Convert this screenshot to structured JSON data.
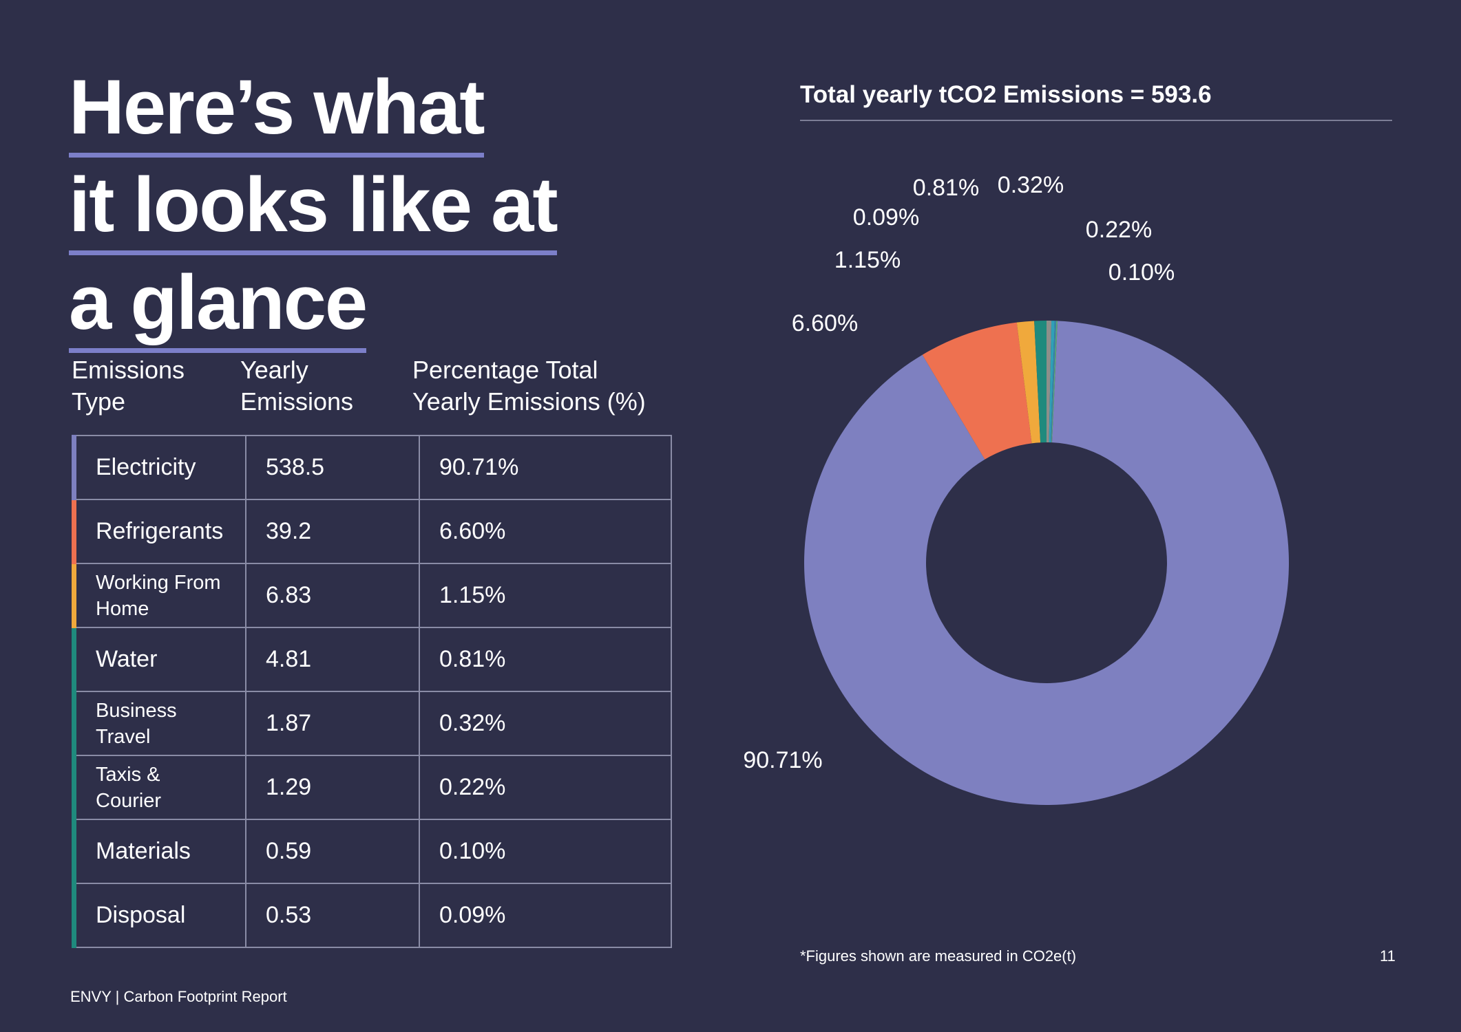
{
  "heading": {
    "line1": "Here’s what",
    "line2": "it looks like at",
    "line3": "a glance"
  },
  "table": {
    "headers": {
      "type": [
        "Emissions",
        "Type"
      ],
      "yearly": [
        "Yearly",
        "Emissions"
      ],
      "pct": [
        "Percentage Total",
        "Yearly Emissions (%)"
      ]
    },
    "rows": [
      {
        "type": "Electricity",
        "value": "538.5",
        "pct": "90.71%",
        "color": "#7e80c0"
      },
      {
        "type": "Refrigerants",
        "value": "39.2",
        "pct": "6.60%",
        "color": "#ee7150"
      },
      {
        "type": "Working From Home",
        "value": "6.83",
        "pct": "1.15%",
        "color": "#f0a93c"
      },
      {
        "type": "Water",
        "value": "4.81",
        "pct": "0.81%",
        "color": "#1f8a7d"
      },
      {
        "type": "Business Travel",
        "value": "1.87",
        "pct": "0.32%",
        "color": "#1f8a7d"
      },
      {
        "type": "Taxis & Courier",
        "value": "1.29",
        "pct": "0.22%",
        "color": "#1f8a7d"
      },
      {
        "type": "Materials",
        "value": "0.59",
        "pct": "0.10%",
        "color": "#1f8a7d"
      },
      {
        "type": "Disposal",
        "value": "0.53",
        "pct": "0.09%",
        "color": "#1f8a7d"
      }
    ]
  },
  "chart_data": {
    "type": "pie",
    "title": "Total  yearly tCO2 Emissions = 593.6",
    "donut": true,
    "slices": [
      {
        "label": "0.32%",
        "value": 0.32,
        "color": "#8d8f8a"
      },
      {
        "label": "0.22%",
        "value": 0.22,
        "color": "#2fa0b8"
      },
      {
        "label": "0.10%",
        "value": 0.1,
        "color": "#3b82a8"
      },
      {
        "label": "0.09%",
        "value": 0.09,
        "color": "#5ca87a"
      },
      {
        "label": "90.71%",
        "value": 90.71,
        "color": "#7e80c0"
      },
      {
        "label": "6.60%",
        "value": 6.6,
        "color": "#ee7150"
      },
      {
        "label": "1.15%",
        "value": 1.15,
        "color": "#f0a93c"
      },
      {
        "label": "0.81%",
        "value": 0.81,
        "color": "#1f8a7d"
      }
    ]
  },
  "footnote": "*Figures shown are measured in CO2e(t)",
  "page_number": "11",
  "footer": "ENVY  | Carbon Footprint Report"
}
